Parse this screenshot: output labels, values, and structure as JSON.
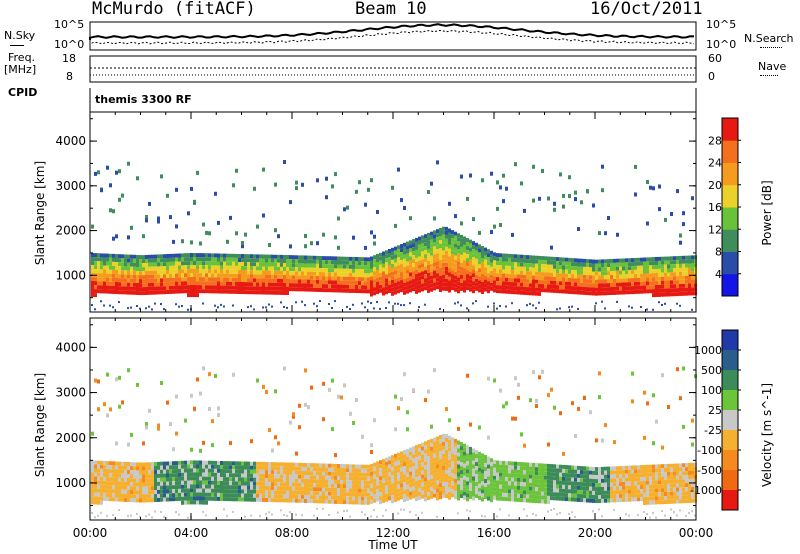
{
  "header": {
    "station": "McMurdo (fitACF)",
    "beam": "Beam 10",
    "date": "16/Oct/2011"
  },
  "strip_panels": {
    "left_labels": [
      "N.Sky",
      "Freq.",
      "[MHz]",
      "CPID"
    ],
    "right_labels": [
      "N.Search",
      "Nave"
    ],
    "noise_left_ticks": [
      "10^5",
      "10^0"
    ],
    "noise_right_ticks": [
      "10^5",
      "10^0"
    ],
    "freq_left_ticks": [
      "18",
      "8"
    ],
    "freq_right_ticks": [
      "60",
      "0"
    ],
    "cpid_text": "themis 3300 RF"
  },
  "chart_data": [
    {
      "type": "heatmap",
      "quantity": "Power",
      "xlabel": "",
      "ylabel": "Slant Range [km]",
      "yticks": [
        "1000",
        "2000",
        "3000",
        "4000"
      ],
      "ylim": [
        180,
        4650
      ],
      "xlim_hours": [
        0,
        24
      ],
      "colorbar": {
        "label": "Power [dB]",
        "ticks": [
          "4",
          "8",
          "12",
          "16",
          "20",
          "24",
          "28"
        ],
        "range": [
          0,
          32
        ],
        "colors": [
          "#1414e6",
          "#2a4ea8",
          "#3f8c5c",
          "#69c23a",
          "#ebd12a",
          "#f59c1e",
          "#f5701e",
          "#e61a12"
        ]
      },
      "description_of_pattern": "dense echo band between ~600 and ~1500 km for the whole day, scattered echoes up to ~3500 km",
      "main_band": [
        {
          "t": 0,
          "low": 600,
          "high": 1500
        },
        {
          "t": 2,
          "low": 620,
          "high": 1450
        },
        {
          "t": 4,
          "low": 600,
          "high": 1500
        },
        {
          "t": 8,
          "low": 650,
          "high": 1450
        },
        {
          "t": 11,
          "low": 600,
          "high": 1400
        },
        {
          "t": 14,
          "low": 700,
          "high": 2100
        },
        {
          "t": 16,
          "low": 650,
          "high": 1500
        },
        {
          "t": 20,
          "low": 600,
          "high": 1350
        },
        {
          "t": 24,
          "low": 600,
          "high": 1450
        }
      ]
    },
    {
      "type": "heatmap",
      "quantity": "Velocity",
      "xlabel": "Time UT",
      "ylabel": "Slant Range [km]",
      "xticks": [
        "00:00",
        "04:00",
        "08:00",
        "12:00",
        "16:00",
        "20:00",
        "00:00"
      ],
      "yticks": [
        "1000",
        "2000",
        "3000",
        "4000"
      ],
      "ylim": [
        180,
        4650
      ],
      "xlim_hours": [
        0,
        24
      ],
      "colorbar": {
        "label": "Velocity [m s^-1]",
        "ticks": [
          "1000",
          "500",
          "100",
          "25",
          "-25",
          "-100",
          "-500",
          "-1000"
        ],
        "colors": [
          "#1f3aa8",
          "#2a5e8a",
          "#3c8c5a",
          "#6cc43a",
          "#c8c8c8",
          "#f5b030",
          "#f58a1e",
          "#f06a14",
          "#e61a12"
        ]
      },
      "regions": [
        {
          "t_start": 0,
          "t_end": 2.5,
          "dominant": "-100"
        },
        {
          "t_start": 2.5,
          "t_end": 6.5,
          "dominant": "100"
        },
        {
          "t_start": 6.5,
          "t_end": 14.5,
          "dominant": "-100"
        },
        {
          "t_start": 14.5,
          "t_end": 18,
          "dominant": "25"
        },
        {
          "t_start": 18,
          "t_end": 20.5,
          "dominant": "100"
        },
        {
          "t_start": 20.5,
          "t_end": 24,
          "dominant": "-100"
        }
      ]
    }
  ],
  "colors": {
    "frame": "#000000",
    "background": "#ffffff"
  }
}
